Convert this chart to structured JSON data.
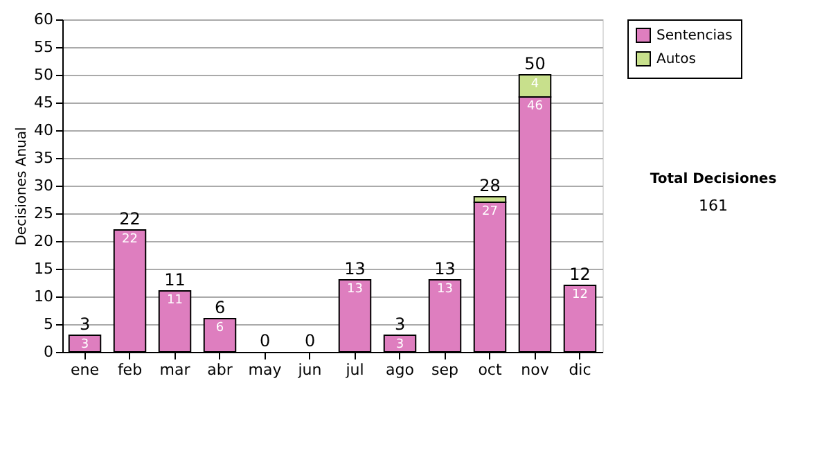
{
  "chart_data": {
    "type": "bar",
    "stacked": true,
    "ylabel": "Decisiones Anual",
    "categories": [
      "ene",
      "feb",
      "mar",
      "abr",
      "may",
      "jun",
      "jul",
      "ago",
      "sep",
      "oct",
      "nov",
      "dic"
    ],
    "series": [
      {
        "name": "Sentencias",
        "color": "#de7ebf",
        "values": [
          3,
          22,
          11,
          6,
          0,
          0,
          13,
          3,
          13,
          27,
          46,
          12
        ],
        "value_labels": [
          "3",
          "22",
          "11",
          "6",
          null,
          null,
          "13",
          "3",
          "13",
          "27",
          "46",
          "12"
        ]
      },
      {
        "name": "Autos",
        "color": "#c8e08c",
        "values": [
          null,
          null,
          null,
          null,
          null,
          null,
          null,
          null,
          null,
          1,
          4,
          null
        ],
        "value_labels": [
          null,
          null,
          null,
          null,
          null,
          null,
          null,
          null,
          null,
          null,
          "4",
          null
        ]
      }
    ],
    "totals": [
      "3",
      "22",
      "11",
      "6",
      "0",
      "0",
      "13",
      "3",
      "13",
      "28",
      "50",
      "12"
    ],
    "ylim": [
      0,
      60
    ],
    "yticks": [
      0,
      5,
      10,
      15,
      20,
      25,
      30,
      35,
      40,
      45,
      50,
      55,
      60
    ],
    "grid": "y",
    "legend": "right",
    "annotations": [
      "Total Decisiones",
      "161"
    ]
  }
}
